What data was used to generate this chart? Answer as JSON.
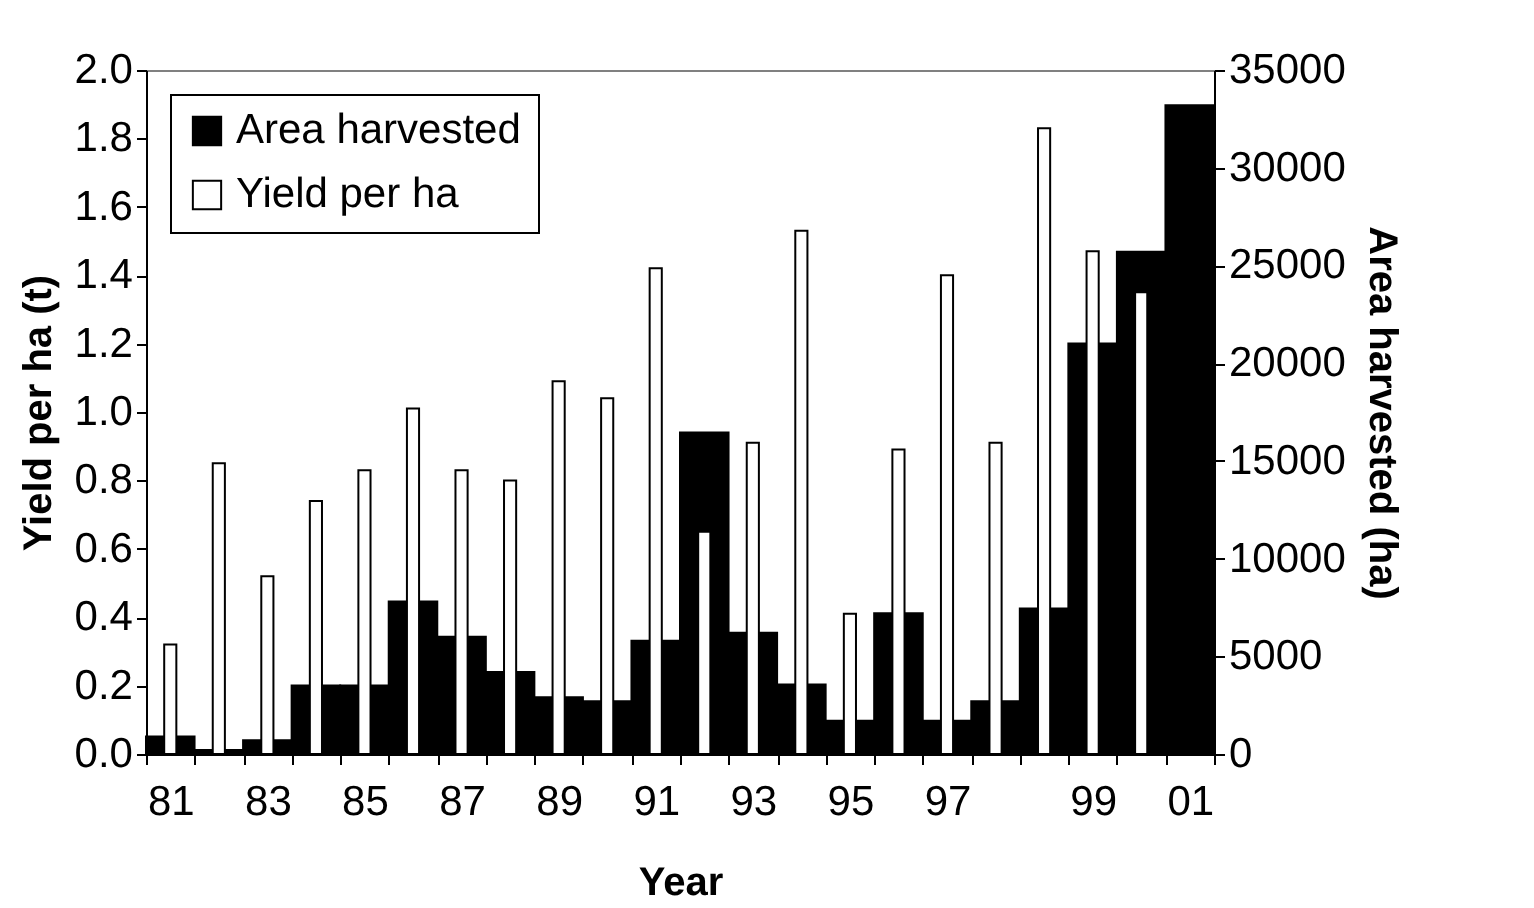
{
  "chart_data": {
    "type": "bar",
    "xlabel": "Year",
    "ylabel": "Yield per ha (t)",
    "y2label": "Area harvested (ha)",
    "categories": [
      "81",
      null,
      "83",
      null,
      "85",
      null,
      "87",
      null,
      "89",
      null,
      "91",
      null,
      "93",
      null,
      "95",
      null,
      "97",
      null,
      null,
      "99",
      null,
      "01"
    ],
    "series": [
      {
        "name": "Area harvested",
        "color": "#000000",
        "axis": "y2",
        "values": [
          900,
          200,
          700,
          3500,
          3500,
          7800,
          6000,
          4200,
          2900,
          2700,
          5800,
          16450,
          6200,
          3550,
          1700,
          7200,
          1700,
          2700,
          7450,
          21000,
          25700,
          33200
        ]
      },
      {
        "name": "Yield per ha",
        "color": "#ffffff",
        "values": [
          0.32,
          0.85,
          0.52,
          0.74,
          0.83,
          1.01,
          0.83,
          0.8,
          1.09,
          1.04,
          1.42,
          0.65,
          0.91,
          1.53,
          0.41,
          0.89,
          1.4,
          0.91,
          1.83,
          1.47,
          1.35,
          null
        ]
      }
    ],
    "ylim": [
      0,
      2
    ],
    "yticks": [
      {
        "value": 0,
        "label": "0.0"
      },
      0.2,
      0.4,
      0.6,
      0.8,
      {
        "value": 1,
        "label": "1.0"
      },
      1.2,
      1.4,
      1.6,
      1.8,
      {
        "value": 2,
        "label": "2.0"
      }
    ],
    "y2lim": [
      0,
      35000
    ],
    "y2ticks": [
      0,
      5000,
      10000,
      15000,
      20000,
      25000,
      30000,
      35000
    ],
    "legend": "top left"
  }
}
